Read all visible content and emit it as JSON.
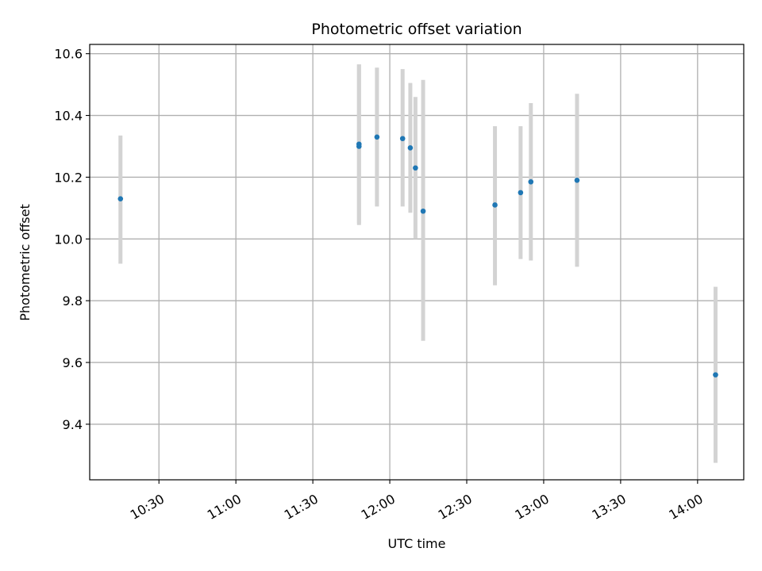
{
  "chart_data": {
    "type": "scatter",
    "title": "Photometric offset variation",
    "xlabel": "UTC time",
    "ylabel": "Photometric offset",
    "x_tick_labels": [
      "10:30",
      "11:00",
      "11:30",
      "12:00",
      "12:30",
      "13:00",
      "13:30",
      "14:00"
    ],
    "y_tick_labels": [
      "9.4",
      "9.6",
      "9.8",
      "10.0",
      "10.2",
      "10.4",
      "10.6"
    ],
    "y_ticks": [
      9.4,
      9.6,
      9.8,
      10.0,
      10.2,
      10.4,
      10.6
    ],
    "xlim": [
      "10:03",
      "14:18"
    ],
    "ylim": [
      9.22,
      10.63
    ],
    "grid": true,
    "series": [
      {
        "points": [
          {
            "x": "10:15",
            "y": 10.13,
            "yerr_low": 9.92,
            "yerr_high": 10.335
          },
          {
            "x": "11:48",
            "y": 10.3,
            "yerr_low": 10.045,
            "yerr_high": 10.565
          },
          {
            "x": "11:48",
            "y": 10.307,
            "yerr_low": 10.05,
            "yerr_high": 10.565
          },
          {
            "x": "11:55",
            "y": 10.33,
            "yerr_low": 10.105,
            "yerr_high": 10.555
          },
          {
            "x": "12:05",
            "y": 10.325,
            "yerr_low": 10.105,
            "yerr_high": 10.55
          },
          {
            "x": "12:08",
            "y": 10.295,
            "yerr_low": 10.085,
            "yerr_high": 10.505
          },
          {
            "x": "12:10",
            "y": 10.23,
            "yerr_low": 10.0,
            "yerr_high": 10.46
          },
          {
            "x": "12:13",
            "y": 10.09,
            "yerr_low": 9.67,
            "yerr_high": 10.515
          },
          {
            "x": "12:41",
            "y": 10.11,
            "yerr_low": 9.85,
            "yerr_high": 10.365
          },
          {
            "x": "12:51",
            "y": 10.15,
            "yerr_low": 9.935,
            "yerr_high": 10.365
          },
          {
            "x": "12:55",
            "y": 10.185,
            "yerr_low": 9.93,
            "yerr_high": 10.44
          },
          {
            "x": "13:13",
            "y": 10.19,
            "yerr_low": 9.91,
            "yerr_high": 10.47
          },
          {
            "x": "14:07",
            "y": 9.56,
            "yerr_low": 9.275,
            "yerr_high": 9.845
          }
        ]
      }
    ],
    "colors": {
      "marker": "#1f77b4",
      "errorbar": "#d3d3d3",
      "grid": "#b0b0b0",
      "axes": "#000000"
    }
  }
}
